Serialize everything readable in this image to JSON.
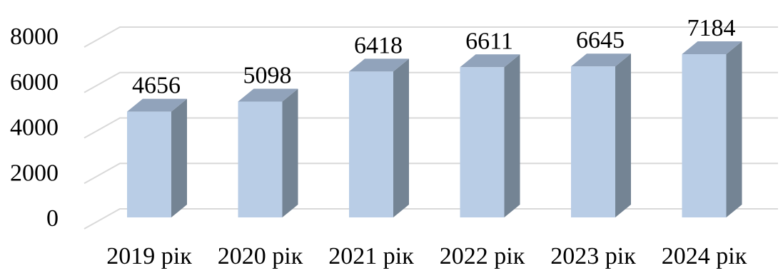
{
  "chart_data": {
    "type": "bar",
    "categories": [
      "2019 рік",
      "2020 рік",
      "2021 рік",
      "2022 рік",
      "2023 рік",
      "2024 рік"
    ],
    "values": [
      4656,
      5098,
      6418,
      6611,
      6645,
      7184
    ],
    "ylim": [
      0,
      8000
    ],
    "yticks": [
      0,
      2000,
      4000,
      6000,
      8000
    ],
    "grid": true,
    "legend": "none",
    "colors": {
      "bar_front": "#b9cde6",
      "bar_side": "#748494",
      "bar_top": "#91a3bb",
      "grid": "#d9d9d9"
    }
  }
}
